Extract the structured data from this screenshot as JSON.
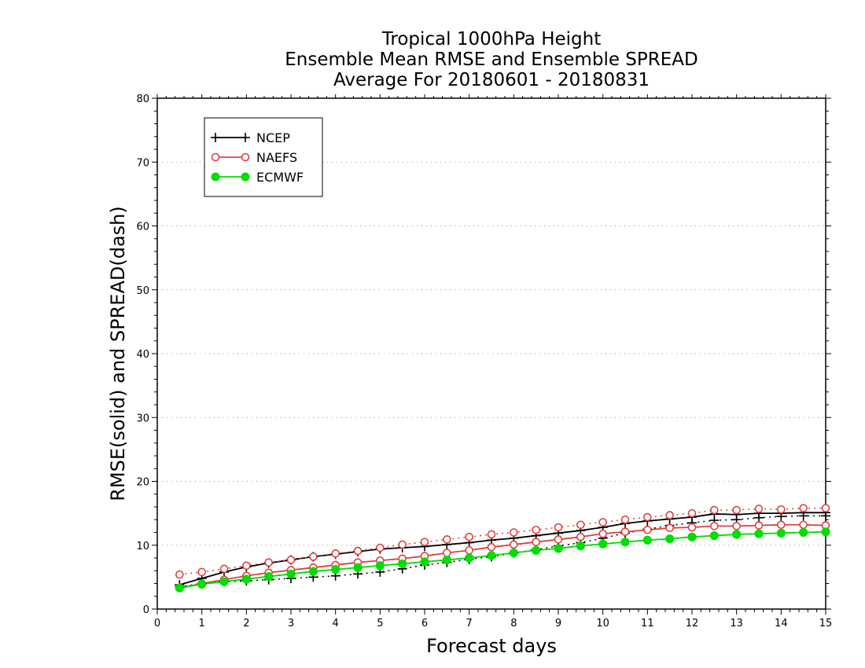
{
  "chart_data": {
    "type": "line",
    "title_lines": [
      "Tropical 1000hPa Height",
      "Ensemble Mean RMSE and Ensemble SPREAD",
      "Average For 20180601 - 20180831"
    ],
    "xlabel": "Forecast days",
    "ylabel": "RMSE(solid) and SPREAD(dash)",
    "xlim": [
      0,
      15
    ],
    "ylim": [
      0,
      80
    ],
    "x_ticks": [
      "0",
      "1",
      "2",
      "3",
      "4",
      "5",
      "6",
      "7",
      "8",
      "9",
      "10",
      "11",
      "12",
      "13",
      "14",
      "15"
    ],
    "y_ticks": [
      "0",
      "10",
      "20",
      "30",
      "40",
      "50",
      "60",
      "70",
      "80"
    ],
    "grid": "horizontal dotted",
    "legend_position": "top-left",
    "x": [
      0.5,
      1,
      1.5,
      2,
      2.5,
      3,
      3.5,
      4,
      4.5,
      5,
      5.5,
      6,
      6.5,
      7,
      7.5,
      8,
      8.5,
      9,
      9.5,
      10,
      10.5,
      11,
      11.5,
      12,
      12.5,
      13,
      13.5,
      14,
      14.5,
      15
    ],
    "series": [
      {
        "name": "NCEP",
        "color": "#000000",
        "marker": "plus",
        "rmse": [
          3.8,
          4.8,
          5.8,
          6.6,
          7.2,
          7.7,
          8.2,
          8.6,
          9.0,
          9.4,
          9.6,
          9.8,
          10.1,
          10.4,
          10.8,
          11.1,
          11.5,
          11.9,
          12.3,
          12.8,
          13.4,
          13.8,
          14.1,
          14.4,
          14.9,
          14.8,
          15.0,
          15.0,
          15.1,
          15.1
        ],
        "spread": [
          3.5,
          4.0,
          4.3,
          4.4,
          4.6,
          4.8,
          5.0,
          5.2,
          5.5,
          5.8,
          6.3,
          6.9,
          7.3,
          7.8,
          8.2,
          8.8,
          9.3,
          9.9,
          10.4,
          11.1,
          11.9,
          12.5,
          13.1,
          13.5,
          13.9,
          14.0,
          14.3,
          14.5,
          14.6,
          14.6
        ]
      },
      {
        "name": "NAEFS",
        "color": "#e04040",
        "marker": "open-circle",
        "rmse": [
          3.3,
          4.0,
          4.6,
          5.2,
          5.7,
          6.1,
          6.5,
          6.9,
          7.3,
          7.6,
          7.9,
          8.3,
          8.8,
          9.2,
          9.7,
          10.1,
          10.5,
          10.9,
          11.3,
          11.8,
          12.1,
          12.4,
          12.7,
          12.8,
          13.0,
          13.0,
          13.1,
          13.2,
          13.2,
          13.1
        ],
        "spread": [
          5.4,
          5.8,
          6.3,
          6.8,
          7.3,
          7.7,
          8.2,
          8.7,
          9.1,
          9.6,
          10.1,
          10.5,
          10.9,
          11.3,
          11.7,
          12.0,
          12.4,
          12.8,
          13.2,
          13.6,
          14.0,
          14.4,
          14.7,
          15.0,
          15.5,
          15.5,
          15.7,
          15.6,
          15.8,
          15.8
        ]
      },
      {
        "name": "ECMWF",
        "color": "#00dd00",
        "marker": "filled-circle",
        "rmse": [
          3.3,
          3.9,
          4.3,
          4.7,
          5.1,
          5.5,
          5.9,
          6.2,
          6.5,
          6.8,
          7.1,
          7.4,
          7.7,
          8.0,
          8.4,
          8.8,
          9.2,
          9.5,
          9.9,
          10.2,
          10.5,
          10.8,
          11.0,
          11.3,
          11.5,
          11.7,
          11.8,
          11.9,
          12.0,
          12.1
        ],
        "spread": [
          3.3,
          3.9,
          4.3,
          4.7,
          5.1,
          5.5,
          5.9,
          6.2,
          6.5,
          6.8,
          7.1,
          7.4,
          7.7,
          8.0,
          8.4,
          8.8,
          9.2,
          9.5,
          9.9,
          10.2,
          10.5,
          10.8,
          11.0,
          11.3,
          11.5,
          11.7,
          11.8,
          11.9,
          12.0,
          12.1
        ]
      }
    ]
  }
}
